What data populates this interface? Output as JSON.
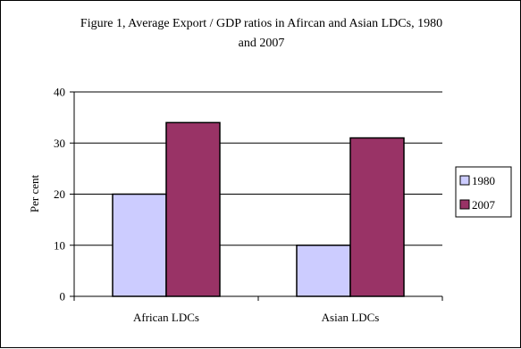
{
  "chart_data": {
    "type": "bar",
    "title": "Figure 1, Average Export / GDP ratios in Afircan and Asian LDCs, 1980 and 2007",
    "title_lines": [
      "Figure 1, Average Export / GDP ratios in Afircan and Asian LDCs, 1980",
      "and 2007"
    ],
    "xlabel": "",
    "ylabel": "Per cent",
    "categories": [
      "African LDCs",
      "Asian LDCs"
    ],
    "series": [
      {
        "name": "1980",
        "values": [
          20,
          10
        ],
        "color": "#ccccff"
      },
      {
        "name": "2007",
        "values": [
          34,
          31
        ],
        "color": "#993366"
      }
    ],
    "ylim": [
      0,
      40
    ],
    "yticks": [
      0,
      10,
      20,
      30,
      40
    ],
    "grid": true,
    "legend_position": "right"
  }
}
